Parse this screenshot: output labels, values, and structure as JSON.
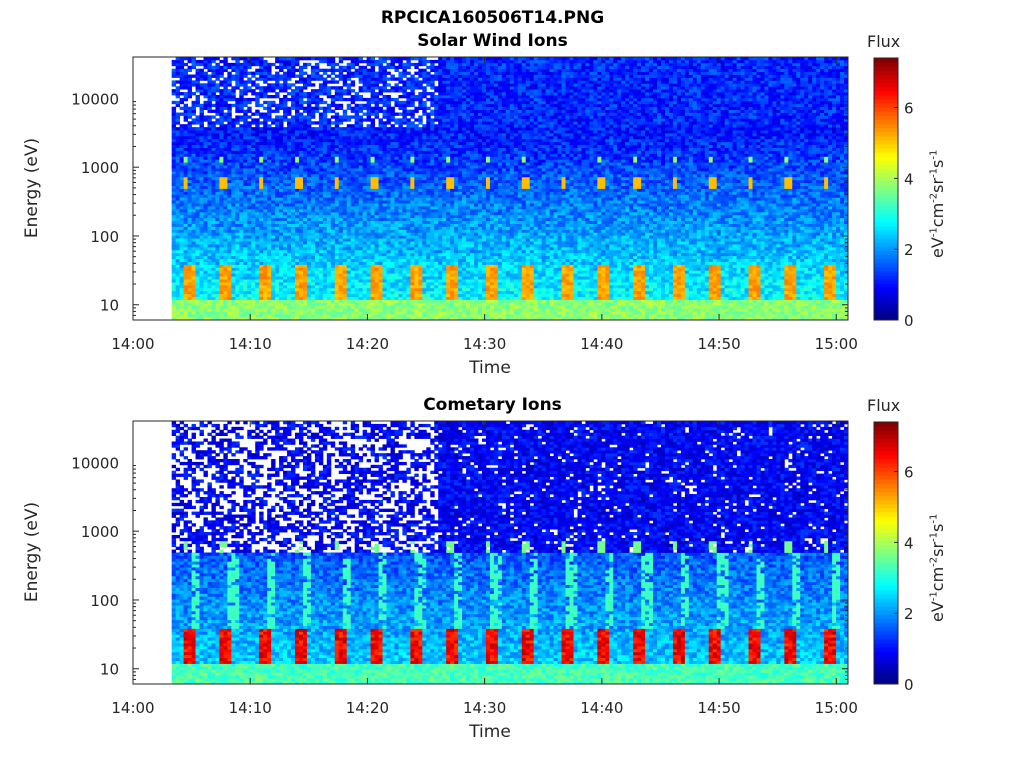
{
  "figure": {
    "title": "RPCICA160506T14.PNG"
  },
  "chart_data": [
    {
      "type": "heatmap",
      "title": "Solar Wind Ions",
      "xlabel": "Time",
      "ylabel": "Energy (eV)",
      "x_ticks": [
        "14:00",
        "14:10",
        "14:20",
        "14:30",
        "14:40",
        "14:50",
        "15:00"
      ],
      "y_ticks": [
        "10",
        "100",
        "1000",
        "10000"
      ],
      "y_scale": "log",
      "ylim": [
        6,
        40000
      ],
      "xlim": [
        "14:00",
        "15:01"
      ],
      "data_start": "14:03",
      "colorbar": {
        "label": "Flux",
        "unit": "eV-1cm-2sr-1s-1",
        "ticks": [
          "0",
          "2",
          "4",
          "6"
        ],
        "range": [
          0,
          7.4
        ],
        "colormap": "jet"
      },
      "features": [
        {
          "name": "low-energy band",
          "energy_eV": [
            12,
            35
          ],
          "level": 5.0
        },
        {
          "name": "mid band",
          "energy_eV": 600,
          "level": 5.0
        },
        {
          "name": "upper band",
          "energy_eV": 1300,
          "level": 4.0
        }
      ]
    },
    {
      "type": "heatmap",
      "title": "Cometary Ions",
      "xlabel": "Time",
      "ylabel": "Energy (eV)",
      "x_ticks": [
        "14:00",
        "14:10",
        "14:20",
        "14:30",
        "14:40",
        "14:50",
        "15:00"
      ],
      "y_ticks": [
        "10",
        "100",
        "1000",
        "10000"
      ],
      "y_scale": "log",
      "ylim": [
        6,
        40000
      ],
      "xlim": [
        "14:00",
        "15:01"
      ],
      "data_start": "14:03",
      "colorbar": {
        "label": "Flux",
        "unit": "eV-1cm-2sr-1s-1",
        "ticks": [
          "0",
          "2",
          "4",
          "6"
        ],
        "range": [
          0,
          7.4
        ],
        "colormap": "jet"
      },
      "features": [
        {
          "name": "low-energy band",
          "energy_eV": [
            12,
            35
          ],
          "level": 6.5
        },
        {
          "name": "mid band",
          "energy_eV": 600,
          "level": 3.5
        }
      ]
    }
  ]
}
